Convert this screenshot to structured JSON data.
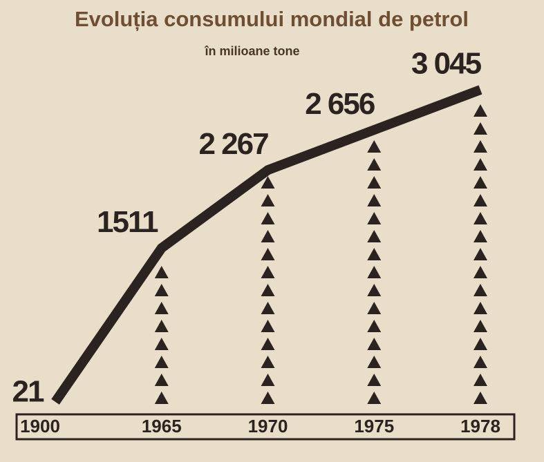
{
  "chart_data": {
    "type": "line",
    "title": "Evoluția consumului mondial de petrol",
    "subtitle": "în milioane tone",
    "categories": [
      "1900",
      "1965",
      "1970",
      "1975",
      "1978"
    ],
    "values": [
      21,
      1511,
      2267,
      2656,
      3045
    ],
    "value_labels": [
      "21",
      "1511",
      "2 267",
      "2 656",
      "3 045"
    ],
    "color": "#2b2320"
  }
}
